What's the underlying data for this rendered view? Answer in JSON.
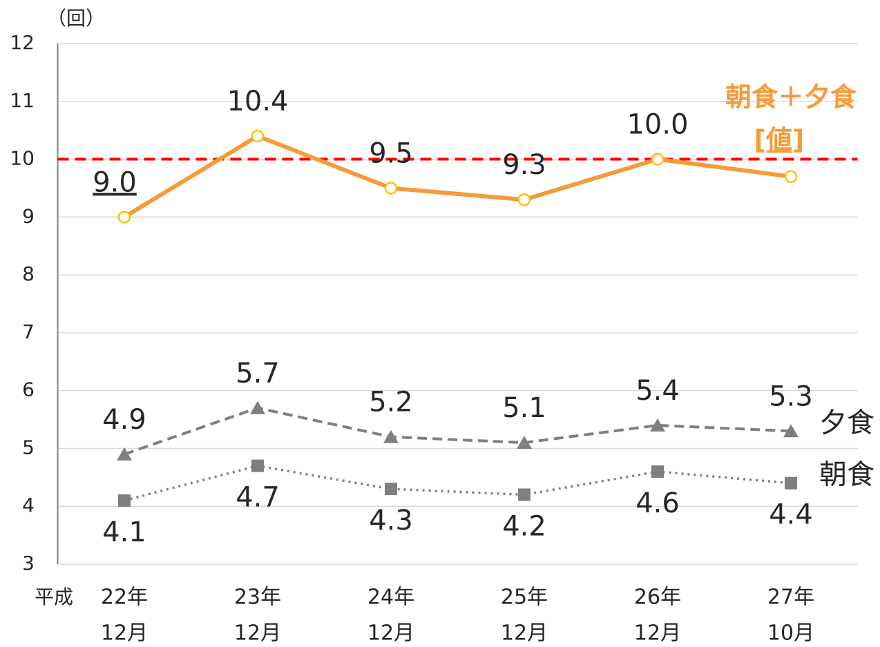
{
  "chart_data": {
    "type": "line",
    "y_unit_label": "（回）",
    "era_label": "平成",
    "categories": [
      [
        "22年",
        "12月"
      ],
      [
        "23年",
        "12月"
      ],
      [
        "24年",
        "12月"
      ],
      [
        "25年",
        "12月"
      ],
      [
        "26年",
        "12月"
      ],
      [
        "27年",
        "10月"
      ]
    ],
    "series": [
      {
        "name": "朝食＋夕食",
        "color": "#f79a38",
        "marker": "circle",
        "marker_color": "#ffc000",
        "line_style": "solid",
        "values": [
          9.0,
          10.4,
          9.5,
          9.3,
          10.0,
          9.7
        ],
        "value_labels": [
          "9.0",
          "10.4",
          "9.5",
          "9.3",
          "10.0",
          null
        ],
        "annotation": "[値]"
      },
      {
        "name": "夕食",
        "color": "#7f7f7f",
        "marker": "triangle",
        "line_style": "dashed",
        "values": [
          4.9,
          5.7,
          5.2,
          5.1,
          5.4,
          5.3
        ]
      },
      {
        "name": "朝食",
        "color": "#7f7f7f",
        "marker": "square",
        "line_style": "dotted",
        "values": [
          4.1,
          4.7,
          4.3,
          4.2,
          4.6,
          4.4
        ]
      }
    ],
    "reference_line": {
      "value": 10,
      "color": "#ff0000"
    },
    "ylim": [
      3,
      12
    ],
    "yticks": [
      3,
      4,
      5,
      6,
      7,
      8,
      9,
      10,
      11,
      12
    ],
    "grid": true
  }
}
